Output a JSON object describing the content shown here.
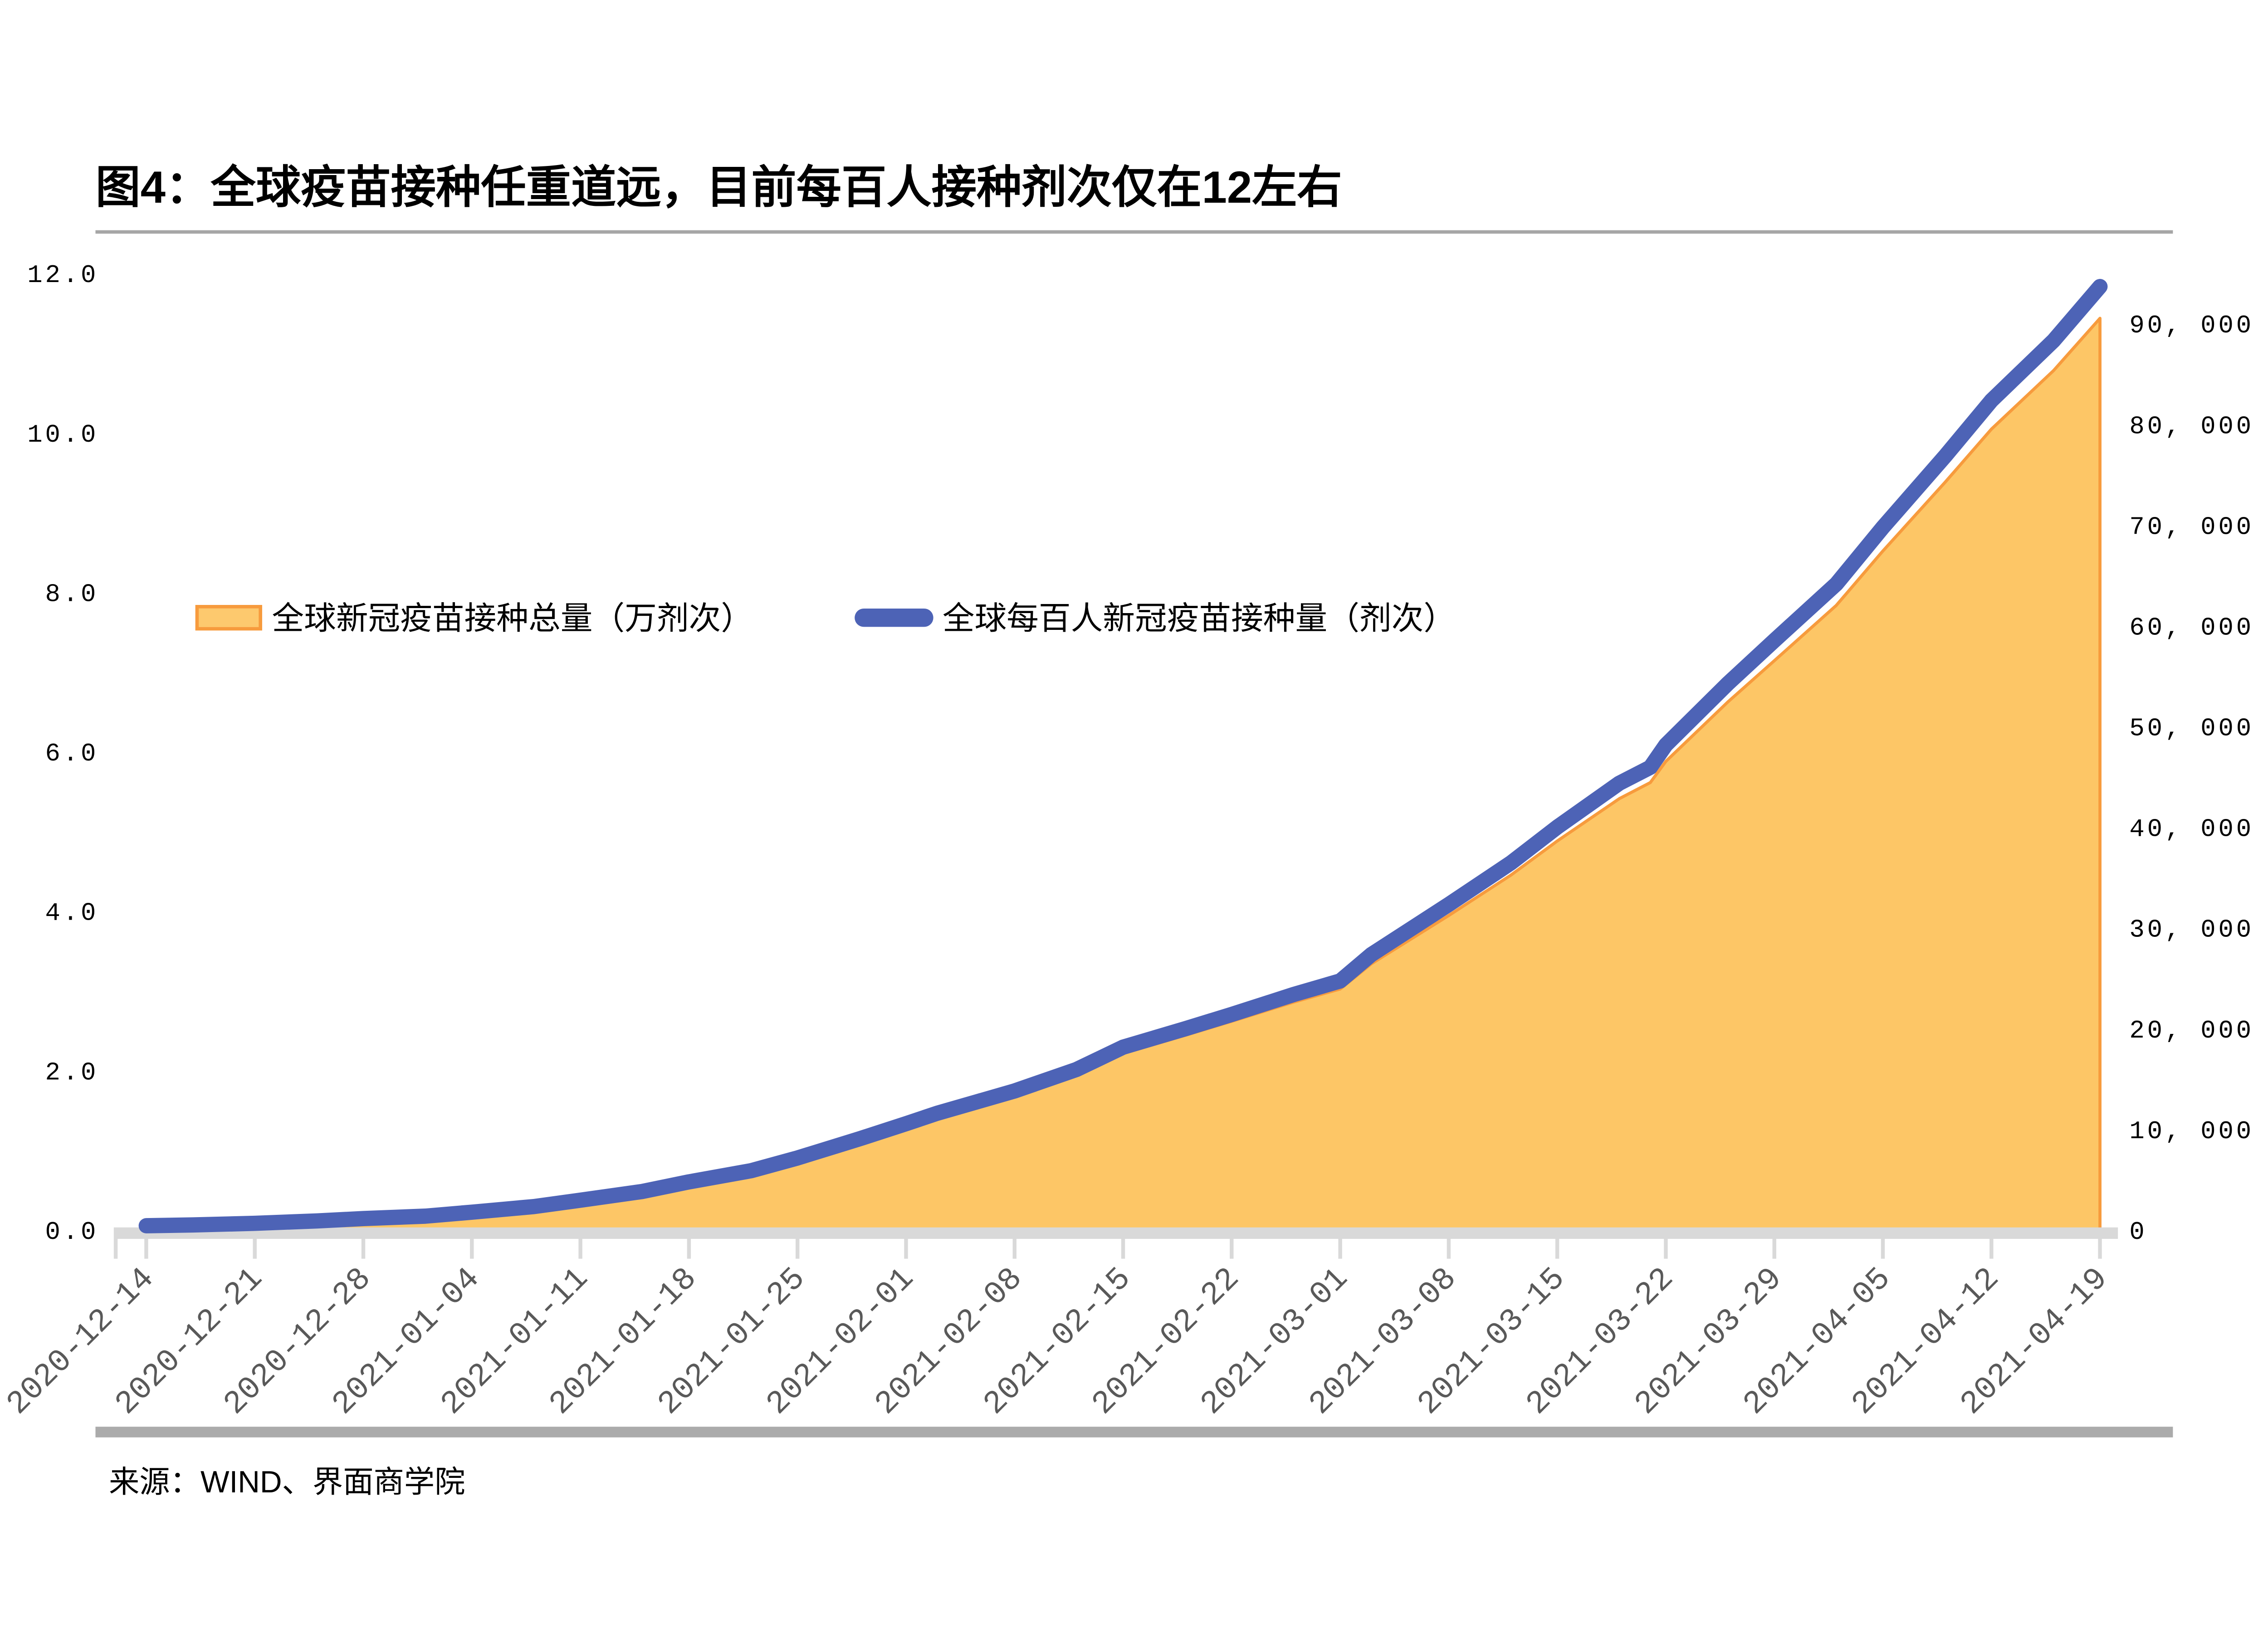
{
  "title": "图4：全球疫苗接种任重道远，目前每百人接种剂次仅在12左右",
  "source": "来源：WIND、界面商学院",
  "colors": {
    "area_fill": "#FDC666",
    "area_border": "#F79B3D",
    "line_blue": "#4D63B6",
    "axis_gray": "#D9D9D9",
    "x_label_gray": "#595959",
    "top_rule_gray": "#A6A6A6",
    "bottom_rule_gray": "#ABABAB"
  },
  "legend": [
    {
      "label": "全球新冠疫苗接种总量（万剂次）",
      "swatch": "area-orange"
    },
    {
      "label": "全球每百人新冠疫苗接种量（剂次）",
      "swatch": "line-blue"
    }
  ],
  "chart_data": {
    "type": "area",
    "title": "图4：全球疫苗接种任重道远，目前每百人接种剂次仅在12左右",
    "x_start": "2020-12-14",
    "x_end": "2021-04-19",
    "x_tick_labels": [
      "2020-12-14",
      "2020-12-21",
      "2020-12-28",
      "2021-01-04",
      "2021-01-11",
      "2021-01-18",
      "2021-01-25",
      "2021-02-01",
      "2021-02-08",
      "2021-02-15",
      "2021-02-22",
      "2021-03-01",
      "2021-03-08",
      "2021-03-15",
      "2021-03-22",
      "2021-03-29",
      "2021-04-05",
      "2021-04-12",
      "2021-04-19"
    ],
    "left_axis": {
      "min": 0,
      "max": 12,
      "tick_step": 2,
      "tick_labels": [
        "0.0",
        "2.0",
        "4.0",
        "6.0",
        "8.0",
        "10.0",
        "12.0"
      ],
      "series": "全球每百人新冠疫苗接种量（剂次）"
    },
    "right_axis": {
      "min": 0,
      "max": 95000,
      "tick_step": 10000,
      "tick_labels": [
        "0",
        "10, 000",
        "20, 000",
        "30, 000",
        "40, 000",
        "50, 000",
        "60, 000",
        "70, 000",
        "80, 000",
        "90, 000"
      ],
      "series": "全球新冠疫苗接种总量（万剂次）"
    },
    "legend_position": "inside-left",
    "grid": false,
    "series": [
      {
        "name": "全球新冠疫苗接种总量（万剂次）",
        "type": "area",
        "axis": "right",
        "points": [
          {
            "date": "2020-12-14",
            "v": 400
          },
          {
            "date": "2020-12-17",
            "v": 450
          },
          {
            "date": "2020-12-21",
            "v": 600
          },
          {
            "date": "2020-12-25",
            "v": 850
          },
          {
            "date": "2020-12-28",
            "v": 1100
          },
          {
            "date": "2021-01-01",
            "v": 1300
          },
          {
            "date": "2021-01-04",
            "v": 1700
          },
          {
            "date": "2021-01-08",
            "v": 2250
          },
          {
            "date": "2021-01-11",
            "v": 2850
          },
          {
            "date": "2021-01-15",
            "v": 3700
          },
          {
            "date": "2021-01-18",
            "v": 4600
          },
          {
            "date": "2021-01-22",
            "v": 5650
          },
          {
            "date": "2021-01-25",
            "v": 6900
          },
          {
            "date": "2021-01-29",
            "v": 8700
          },
          {
            "date": "2021-02-01",
            "v": 10200
          },
          {
            "date": "2021-02-03",
            "v": 11200
          },
          {
            "date": "2021-02-08",
            "v": 13300
          },
          {
            "date": "2021-02-12",
            "v": 15400
          },
          {
            "date": "2021-02-15",
            "v": 17500
          },
          {
            "date": "2021-02-19",
            "v": 19300
          },
          {
            "date": "2021-02-22",
            "v": 20700
          },
          {
            "date": "2021-02-26",
            "v": 22600
          },
          {
            "date": "2021-03-01",
            "v": 23900
          },
          {
            "date": "2021-03-03",
            "v": 26400
          },
          {
            "date": "2021-03-08",
            "v": 31200
          },
          {
            "date": "2021-03-12",
            "v": 35200
          },
          {
            "date": "2021-03-15",
            "v": 38600
          },
          {
            "date": "2021-03-19",
            "v": 42800
          },
          {
            "date": "2021-03-21",
            "v": 44400
          },
          {
            "date": "2021-03-22",
            "v": 46500
          },
          {
            "date": "2021-03-26",
            "v": 52400
          },
          {
            "date": "2021-03-29",
            "v": 56500
          },
          {
            "date": "2021-04-02",
            "v": 62000
          },
          {
            "date": "2021-04-05",
            "v": 67400
          },
          {
            "date": "2021-04-09",
            "v": 74200
          },
          {
            "date": "2021-04-12",
            "v": 79500
          },
          {
            "date": "2021-04-16",
            "v": 85300
          },
          {
            "date": "2021-04-19",
            "v": 90500
          }
        ]
      },
      {
        "name": "全球每百人新冠疫苗接种量（剂次）",
        "type": "line",
        "axis": "left",
        "points": [
          {
            "date": "2020-12-14",
            "v": 0.05
          },
          {
            "date": "2020-12-17",
            "v": 0.06
          },
          {
            "date": "2020-12-21",
            "v": 0.08
          },
          {
            "date": "2020-12-25",
            "v": 0.11
          },
          {
            "date": "2020-12-28",
            "v": 0.14
          },
          {
            "date": "2021-01-01",
            "v": 0.17
          },
          {
            "date": "2021-01-04",
            "v": 0.22
          },
          {
            "date": "2021-01-08",
            "v": 0.29
          },
          {
            "date": "2021-01-11",
            "v": 0.37
          },
          {
            "date": "2021-01-15",
            "v": 0.48
          },
          {
            "date": "2021-01-18",
            "v": 0.6
          },
          {
            "date": "2021-01-22",
            "v": 0.74
          },
          {
            "date": "2021-01-25",
            "v": 0.9
          },
          {
            "date": "2021-01-29",
            "v": 1.14
          },
          {
            "date": "2021-02-01",
            "v": 1.33
          },
          {
            "date": "2021-02-03",
            "v": 1.46
          },
          {
            "date": "2021-02-08",
            "v": 1.74
          },
          {
            "date": "2021-02-12",
            "v": 2.01
          },
          {
            "date": "2021-02-15",
            "v": 2.29
          },
          {
            "date": "2021-02-19",
            "v": 2.52
          },
          {
            "date": "2021-02-22",
            "v": 2.7
          },
          {
            "date": "2021-02-26",
            "v": 2.95
          },
          {
            "date": "2021-03-01",
            "v": 3.12
          },
          {
            "date": "2021-03-03",
            "v": 3.45
          },
          {
            "date": "2021-03-08",
            "v": 4.08
          },
          {
            "date": "2021-03-12",
            "v": 4.6
          },
          {
            "date": "2021-03-15",
            "v": 5.05
          },
          {
            "date": "2021-03-19",
            "v": 5.6
          },
          {
            "date": "2021-03-21",
            "v": 5.8
          },
          {
            "date": "2021-03-22",
            "v": 6.08
          },
          {
            "date": "2021-03-26",
            "v": 6.85
          },
          {
            "date": "2021-03-29",
            "v": 7.39
          },
          {
            "date": "2021-04-02",
            "v": 8.1
          },
          {
            "date": "2021-04-05",
            "v": 8.81
          },
          {
            "date": "2021-04-09",
            "v": 9.7
          },
          {
            "date": "2021-04-12",
            "v": 10.4
          },
          {
            "date": "2021-04-16",
            "v": 11.15
          },
          {
            "date": "2021-04-19",
            "v": 11.83
          }
        ]
      }
    ]
  }
}
